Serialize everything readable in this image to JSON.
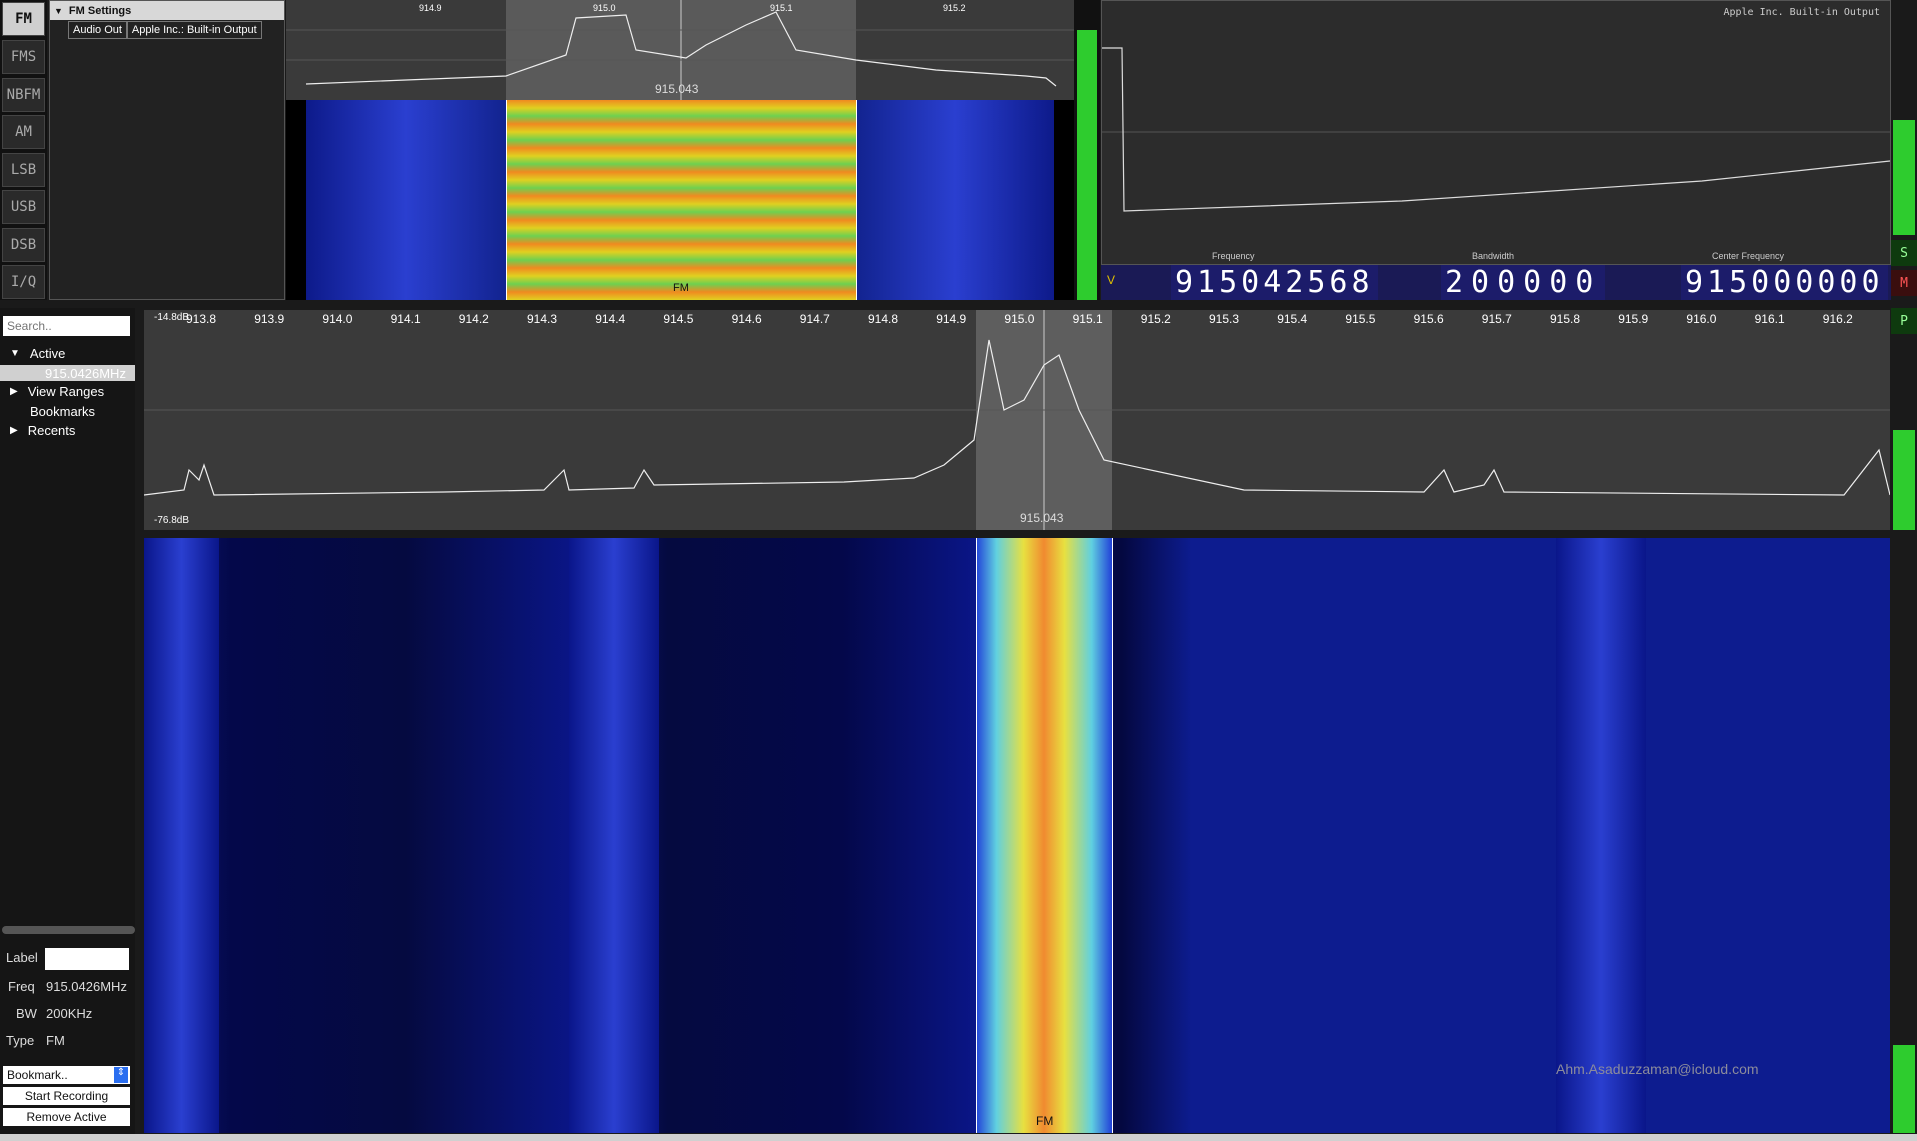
{
  "modes": [
    "FM",
    "FMS",
    "NBFM",
    "AM",
    "LSB",
    "USB",
    "DSB",
    "I/Q"
  ],
  "active_mode": "FM",
  "settings": {
    "title": "FM Settings",
    "audio_out_label": "Audio Out",
    "audio_out_value": "Apple Inc.: Built-in Output"
  },
  "mini_spectrum": {
    "ticks": [
      "914.9",
      "915.0",
      "915.1",
      "915.2"
    ],
    "center_label": "915.043",
    "mode_label": "FM"
  },
  "scope": {
    "device_label": "Apple Inc. Built-in Output"
  },
  "frequency_panel": {
    "v_label": "V",
    "frequency_label": "Frequency",
    "frequency_value": "915042568",
    "bandwidth_label": "Bandwidth",
    "bandwidth_value": "200000",
    "center_label": "Center Frequency",
    "center_value": "915000000",
    "s_label": "S",
    "m_label": "M",
    "p_label": "P"
  },
  "sidebar": {
    "search_placeholder": "Search..",
    "active_label": "Active",
    "active_item": "915.0426MHz",
    "view_ranges": "View Ranges",
    "bookmarks": "Bookmarks",
    "recents": "Recents",
    "label_caption": "Label",
    "freq_caption": "Freq",
    "freq_value": "915.0426MHz",
    "bw_caption": "BW",
    "bw_value": "200KHz",
    "type_caption": "Type",
    "type_value": "FM",
    "bookmark_select": "Bookmark..",
    "start_recording": "Start Recording",
    "remove_active": "Remove Active"
  },
  "main_spectrum": {
    "db_top": "-14.8dB",
    "db_bottom": "-76.8dB",
    "ticks": [
      "913.8",
      "913.9",
      "914.0",
      "914.1",
      "914.2",
      "914.3",
      "914.4",
      "914.5",
      "914.6",
      "914.7",
      "914.8",
      "914.9",
      "915.0",
      "915.1",
      "915.2",
      "915.3",
      "915.4",
      "915.5",
      "915.6",
      "915.7",
      "915.8",
      "915.9",
      "916.0",
      "916.1",
      "916.2"
    ],
    "center_label": "915.043",
    "mode_label": "FM"
  },
  "watermark": "Ahm.Asaduzzaman@icloud.com",
  "colors": {
    "meter_green": "#2ecc2e",
    "digit_bg": "#1c1c6a",
    "selection": "#9a9a9a"
  }
}
